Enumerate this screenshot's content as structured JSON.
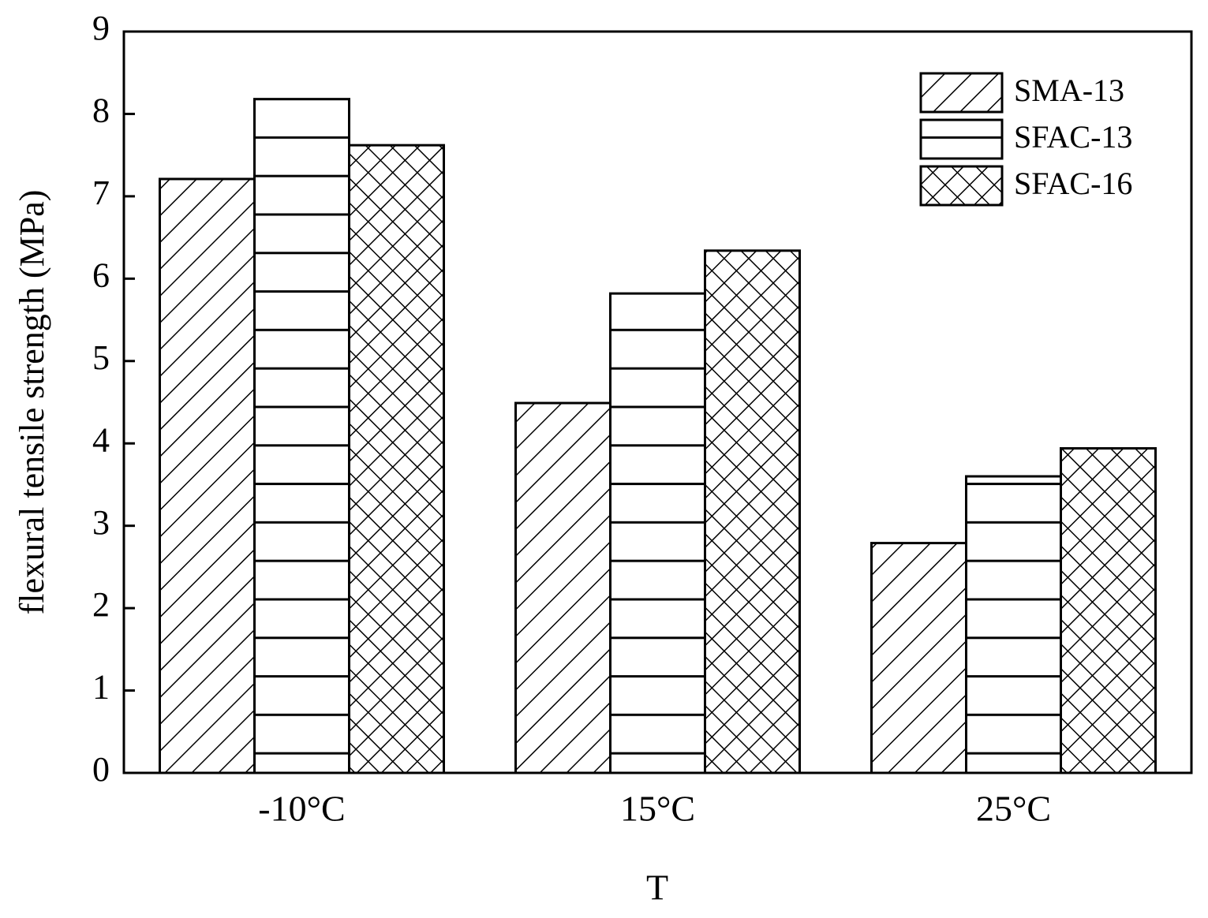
{
  "chart_data": {
    "type": "bar",
    "xlabel": "T",
    "ylabel": "flexural tensile strength (MPa)",
    "categories": [
      "-10°C",
      "15°C",
      "25°C"
    ],
    "series": [
      {
        "name": "SMA-13",
        "color": "#000000",
        "pattern": "diagonal",
        "values": [
          7.21,
          4.49,
          2.79
        ]
      },
      {
        "name": "SFAC-13",
        "color": "#000000",
        "pattern": "horizontal",
        "values": [
          8.18,
          5.82,
          3.6
        ]
      },
      {
        "name": "SFAC-16",
        "color": "#000000",
        "pattern": "crosshatch",
        "values": [
          7.62,
          6.34,
          3.94
        ]
      }
    ],
    "ylim": [
      0,
      9
    ],
    "yticks": [
      0,
      1,
      2,
      3,
      4,
      5,
      6,
      7,
      8,
      9
    ],
    "legend": "upper right",
    "grid": false
  }
}
